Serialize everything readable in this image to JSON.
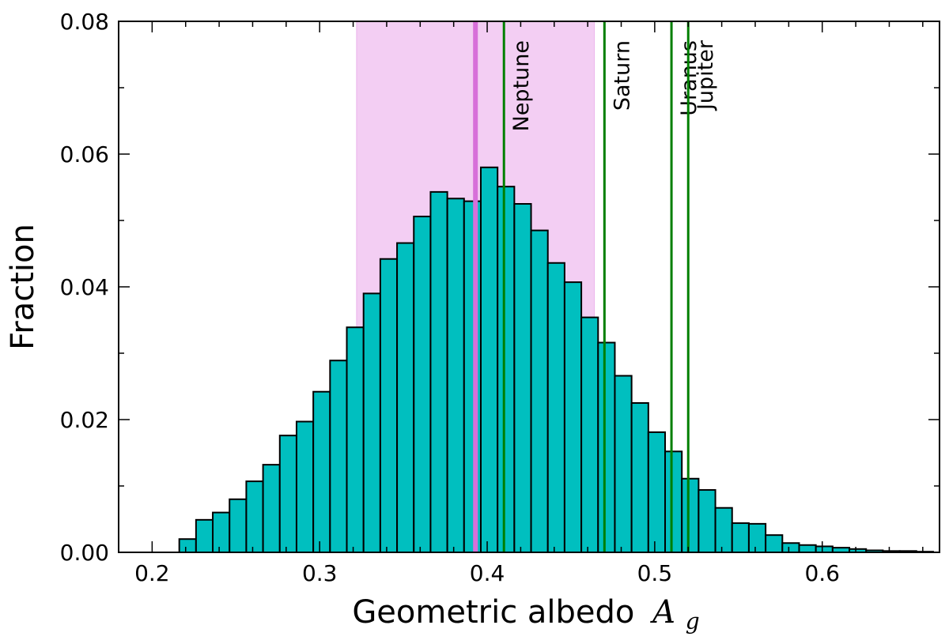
{
  "chart_data": {
    "type": "bar",
    "title": "",
    "xlabel": "Geometric albedo",
    "xlabel_symbol": "A",
    "xlabel_subscript": "g",
    "ylabel": "Fraction",
    "xlim": [
      0.18,
      0.67
    ],
    "ylim": [
      0,
      0.08
    ],
    "xticks": [
      {
        "value": 0.2,
        "label": "0.2"
      },
      {
        "value": 0.3,
        "label": "0.3"
      },
      {
        "value": 0.4,
        "label": "0.4"
      },
      {
        "value": 0.5,
        "label": "0.5"
      },
      {
        "value": 0.6,
        "label": "0.6"
      }
    ],
    "yticks": [
      {
        "value": 0.0,
        "label": "0.00"
      },
      {
        "value": 0.02,
        "label": "0.02"
      },
      {
        "value": 0.04,
        "label": "0.04"
      },
      {
        "value": 0.06,
        "label": "0.06"
      },
      {
        "value": 0.08,
        "label": "0.08"
      }
    ],
    "grid": false,
    "histogram": {
      "bin_start": 0.2162,
      "bin_width": 0.01,
      "values": [
        0.002,
        0.0049,
        0.006,
        0.008,
        0.0107,
        0.0132,
        0.0176,
        0.0197,
        0.0242,
        0.0289,
        0.0339,
        0.039,
        0.0442,
        0.0466,
        0.0506,
        0.0543,
        0.0533,
        0.0529,
        0.058,
        0.0551,
        0.0525,
        0.0485,
        0.0436,
        0.0407,
        0.0354,
        0.0316,
        0.0266,
        0.0225,
        0.0181,
        0.0152,
        0.0111,
        0.0094,
        0.0067,
        0.0044,
        0.0043,
        0.0026,
        0.0014,
        0.0011,
        0.0009,
        0.0007,
        0.0005,
        0.0003,
        0.0002,
        0.0002,
        0.0001
      ]
    },
    "highlight": {
      "best_value": 0.393,
      "band_range": [
        0.322,
        0.464
      ],
      "band_color": "#e9a6ea",
      "line_color": "#d76fd9"
    },
    "reference_lines": [
      {
        "label": "Neptune",
        "value": 0.41
      },
      {
        "label": "Saturn",
        "value": 0.47
      },
      {
        "label": "Uranus",
        "value": 0.51
      },
      {
        "label": "Jupiter",
        "value": 0.52
      }
    ],
    "colors": {
      "bar_fill": "#00bfbf",
      "bar_edge": "#000000",
      "reference_line": "#007f00"
    }
  }
}
